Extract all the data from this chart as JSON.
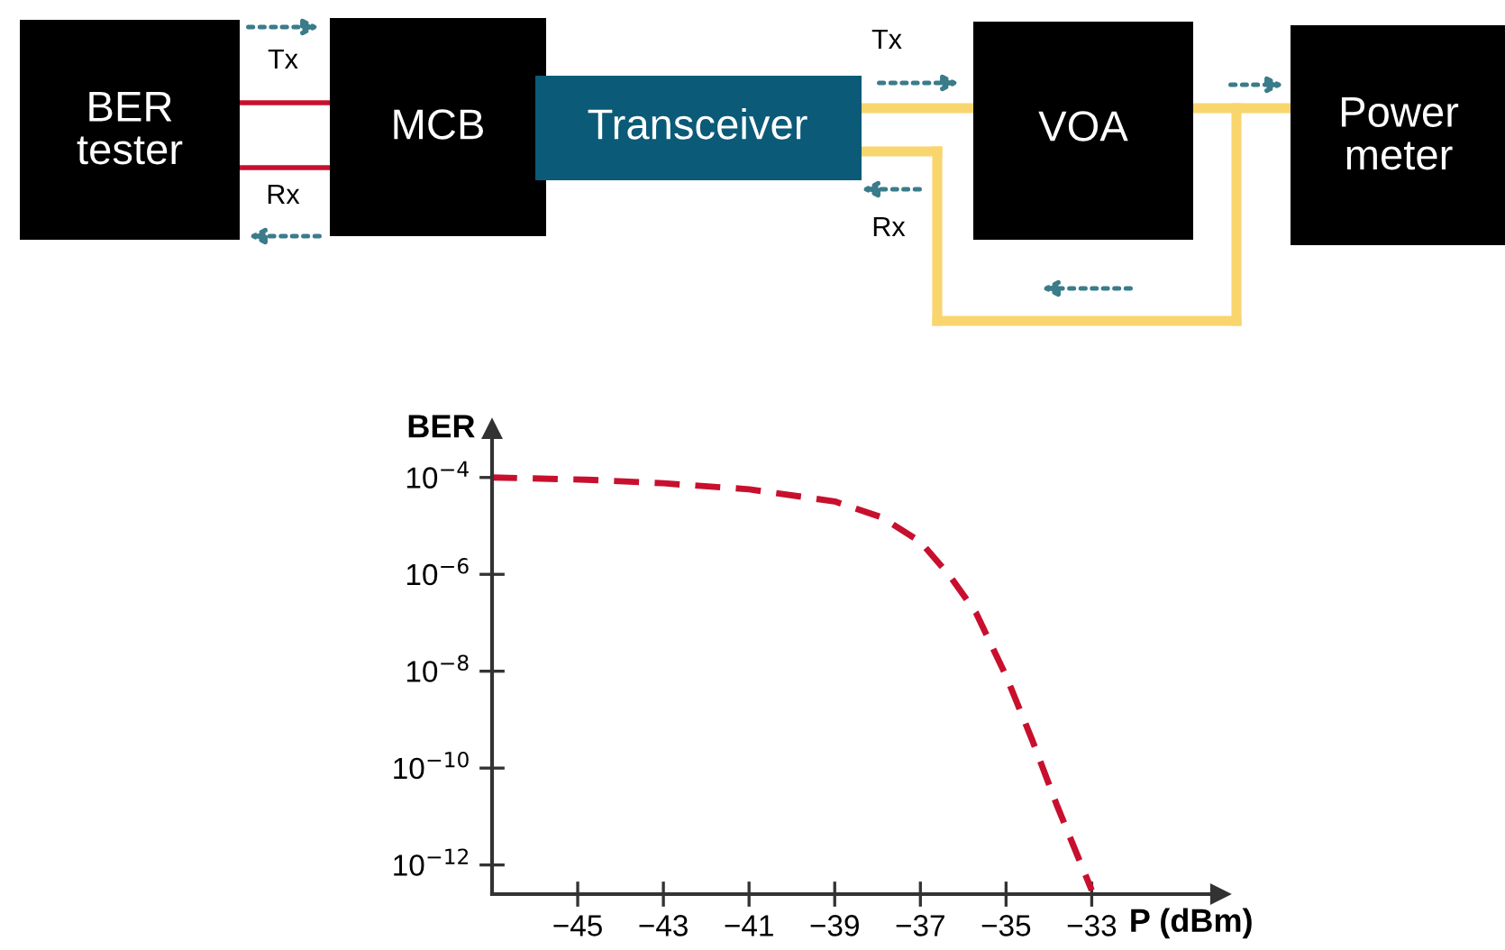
{
  "chart_data": [
    {
      "type": "other",
      "annotations": [
        "BER\ntester",
        "MCB",
        "Transceiver",
        "VOA",
        "Power\nmeter",
        "Tx",
        "Rx",
        "Tx",
        "Rx"
      ]
    },
    {
      "type": "line",
      "xlabel": "P (dBm)",
      "ylabel": "BER",
      "log": "y",
      "line_style": "dashed",
      "marker": "none",
      "grid": false,
      "legend": false,
      "x": [
        -47,
        -44.8,
        -43,
        -41,
        -39,
        -37.9,
        -37,
        -36.3,
        -35.7,
        -35,
        -34.4,
        -33.8,
        -33
      ],
      "series": [
        {
          "color": "#c8102e",
          "values": [
            0.0001,
            9e-05,
            7.6e-05,
            5.7e-05,
            3.2e-05,
            1.5e-05,
            4.7e-06,
            9e-07,
            1.6e-07,
            8e-09,
            4e-10,
            1.6e-11,
            3e-13
          ]
        }
      ],
      "xlim": [
        -47,
        -30
      ],
      "xticks": [
        {
          "value": -45,
          "label": "−45"
        },
        {
          "value": -43,
          "label": "−43"
        },
        {
          "value": -41,
          "label": "−41"
        },
        {
          "value": -39,
          "label": "−39"
        },
        {
          "value": -37,
          "label": "−37"
        },
        {
          "value": -35,
          "label": "−35"
        },
        {
          "value": -33,
          "label": "−33"
        }
      ],
      "ylim": [
        2.5e-13,
        0.001
      ],
      "yticks": [
        {
          "value": 0.0001,
          "label": "10$^{−4}$"
        },
        {
          "value": 1e-06,
          "label": "10$^{−6}$"
        },
        {
          "value": 1e-08,
          "label": "10$^{−8}$"
        },
        {
          "value": 1e-10,
          "label": "10$^{−10}$"
        },
        {
          "value": 1e-12,
          "label": "10$^{−12}$"
        }
      ]
    }
  ]
}
